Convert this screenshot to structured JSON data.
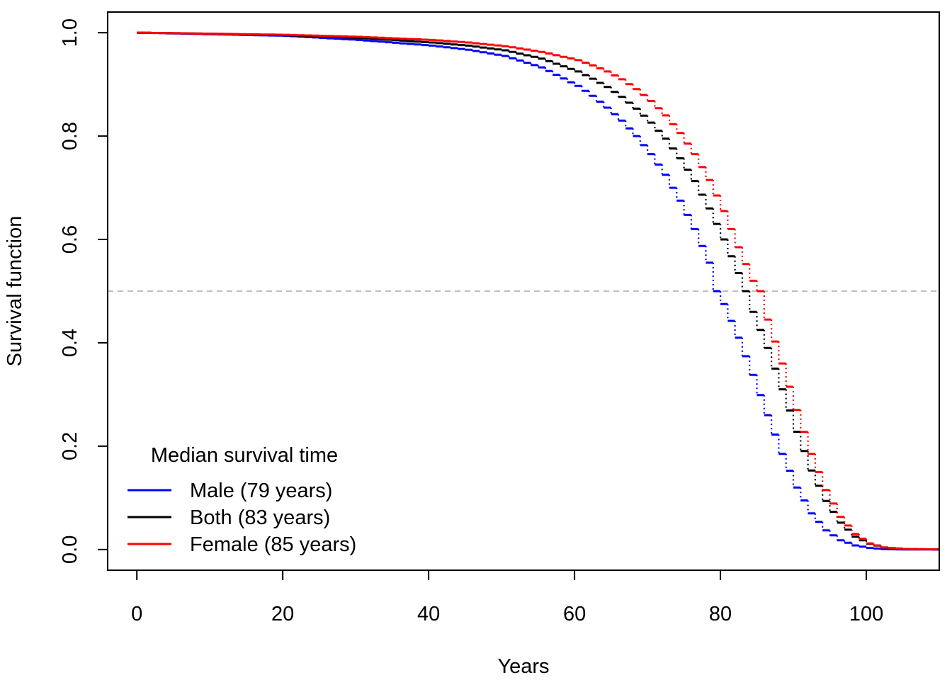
{
  "chart_data": {
    "type": "line",
    "xlabel": "Years",
    "ylabel": "Survival function",
    "xlim": [
      -4,
      110
    ],
    "ylim": [
      -0.04,
      1.04
    ],
    "x_ticks": [
      "0",
      "20",
      "40",
      "60",
      "80",
      "100"
    ],
    "y_ticks": [
      "0.0",
      "0.2",
      "0.4",
      "0.6",
      "0.8",
      "1.0"
    ],
    "reference_line": {
      "y": 0.5,
      "color": "#bebebe",
      "style": "dashed"
    },
    "legend": {
      "title": "Median survival time",
      "position": "bottom-left"
    },
    "series": [
      {
        "name": "Male (79 years)",
        "color": "#0000ff",
        "median": 79,
        "x": [
          0,
          10,
          20,
          30,
          40,
          45,
          50,
          55,
          60,
          62,
          64,
          66,
          68,
          70,
          72,
          74,
          76,
          78,
          79,
          80,
          82,
          84,
          86,
          88,
          90,
          92,
          94,
          96,
          98,
          100,
          102,
          105,
          110
        ],
        "y": [
          1.0,
          0.997,
          0.994,
          0.986,
          0.975,
          0.967,
          0.955,
          0.933,
          0.897,
          0.878,
          0.855,
          0.83,
          0.8,
          0.765,
          0.725,
          0.675,
          0.62,
          0.555,
          0.5,
          0.475,
          0.41,
          0.338,
          0.26,
          0.185,
          0.12,
          0.07,
          0.037,
          0.018,
          0.008,
          0.003,
          0.001,
          0.0,
          0.0
        ]
      },
      {
        "name": "Both (83 years)",
        "color": "#000000",
        "median": 83,
        "x": [
          0,
          10,
          20,
          30,
          40,
          45,
          50,
          55,
          60,
          62,
          64,
          66,
          68,
          70,
          72,
          74,
          76,
          78,
          80,
          82,
          83,
          84,
          86,
          88,
          90,
          92,
          94,
          96,
          98,
          100,
          102,
          105,
          110
        ],
        "y": [
          1.0,
          0.998,
          0.995,
          0.99,
          0.981,
          0.975,
          0.966,
          0.95,
          0.925,
          0.911,
          0.895,
          0.876,
          0.853,
          0.826,
          0.795,
          0.757,
          0.713,
          0.66,
          0.6,
          0.535,
          0.5,
          0.46,
          0.39,
          0.31,
          0.228,
          0.153,
          0.094,
          0.052,
          0.025,
          0.011,
          0.004,
          0.001,
          0.0
        ]
      },
      {
        "name": "Female (85 years)",
        "color": "#ff0000",
        "median": 85,
        "x": [
          0,
          10,
          20,
          30,
          40,
          45,
          50,
          55,
          60,
          62,
          64,
          66,
          68,
          70,
          72,
          74,
          76,
          78,
          80,
          82,
          84,
          85,
          86,
          88,
          90,
          92,
          94,
          96,
          98,
          100,
          102,
          105,
          110
        ],
        "y": [
          1.0,
          0.998,
          0.996,
          0.992,
          0.986,
          0.981,
          0.974,
          0.963,
          0.947,
          0.937,
          0.925,
          0.91,
          0.891,
          0.868,
          0.84,
          0.806,
          0.765,
          0.715,
          0.655,
          0.585,
          0.52,
          0.5,
          0.445,
          0.36,
          0.27,
          0.185,
          0.115,
          0.063,
          0.03,
          0.012,
          0.004,
          0.001,
          0.0
        ]
      }
    ]
  }
}
